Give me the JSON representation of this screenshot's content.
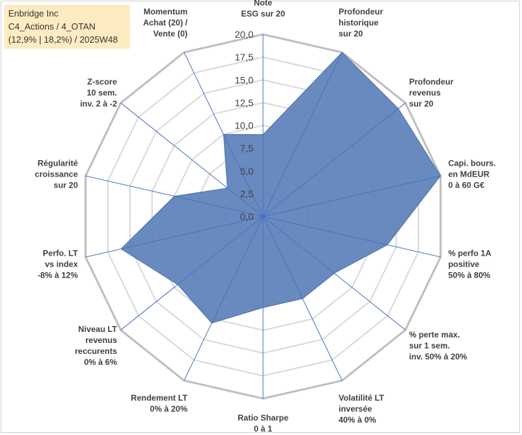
{
  "title_box": {
    "line1": "Enbridge Inc",
    "line2": "C4_Actions / 4_OTAN",
    "line3": "(12,9% | 18,2%) / 2025W48"
  },
  "chart_data": {
    "type": "radar",
    "title": "Enbridge Inc",
    "rlim": [
      0,
      20
    ],
    "r_ticks": [
      "0,0",
      "2,5",
      "5,0",
      "7,5",
      "10,0",
      "12,5",
      "15,0",
      "17,5",
      "20,0"
    ],
    "r_tick_values": [
      0,
      2.5,
      5,
      7.5,
      10,
      12.5,
      15,
      17.5,
      20
    ],
    "grid": true,
    "series": [
      {
        "name": "Enbridge Inc",
        "color": "#5b80b8",
        "values": [
          9,
          20,
          19,
          20,
          14,
          10,
          10,
          10,
          13,
          12,
          16,
          10,
          5,
          10
        ]
      }
    ],
    "categories": [
      [
        "Note",
        "ESG sur 20"
      ],
      [
        "Profondeur",
        "historique",
        "sur 20"
      ],
      [
        "Profondeur",
        "revenus",
        "sur 20"
      ],
      [
        "Capi. bours.",
        "en MdEUR",
        "0 à 60 G€"
      ],
      [
        "% perfo 1A",
        "positive",
        "50% à 80%"
      ],
      [
        "% perte max.",
        "sur 1 sem.",
        "inv. 50% à 20%"
      ],
      [
        "Volatilité LT",
        "inversée",
        "40% à 0%"
      ],
      [
        "Ratio Sharpe",
        "0 à 1"
      ],
      [
        "Rendement LT",
        "0% à 20%"
      ],
      [
        "Niveau LT",
        "revenus",
        "reccurents",
        "0% à 6%"
      ],
      [
        "Perfo. LT",
        "vs index",
        "-8% à 12%"
      ],
      [
        "Régularité",
        "croissance",
        "sur 20"
      ],
      [
        "Z-score",
        "10 sem.",
        "inv. 2 à -2"
      ],
      [
        "Momentum",
        "Achat (20) /",
        "Vente (0)"
      ]
    ]
  }
}
